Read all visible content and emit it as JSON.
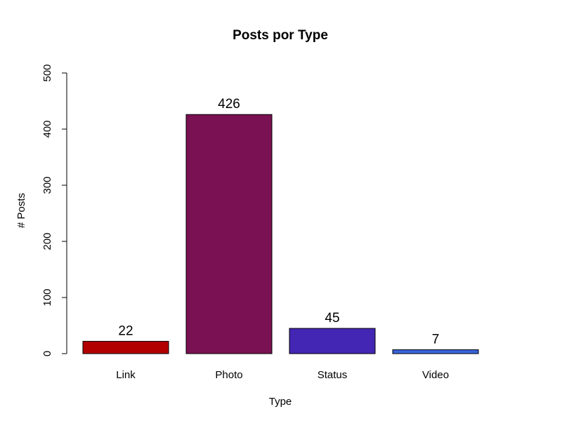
{
  "chart_data": {
    "type": "bar",
    "title": "Posts por Type",
    "xlabel": "Type",
    "ylabel": "# Posts",
    "categories": [
      "Link",
      "Photo",
      "Status",
      "Video"
    ],
    "values": [
      22,
      426,
      45,
      7
    ],
    "data_labels": [
      "22",
      "426",
      "45",
      "7"
    ],
    "colors": [
      "#B20000",
      "#7A1152",
      "#4326B4",
      "#3A63DA"
    ],
    "ylim": [
      0,
      500
    ],
    "yticks": [
      0,
      100,
      200,
      300,
      400,
      500
    ],
    "ytick_labels": [
      "0",
      "100",
      "200",
      "300",
      "400",
      "500"
    ],
    "grid": false,
    "legend": "none"
  }
}
